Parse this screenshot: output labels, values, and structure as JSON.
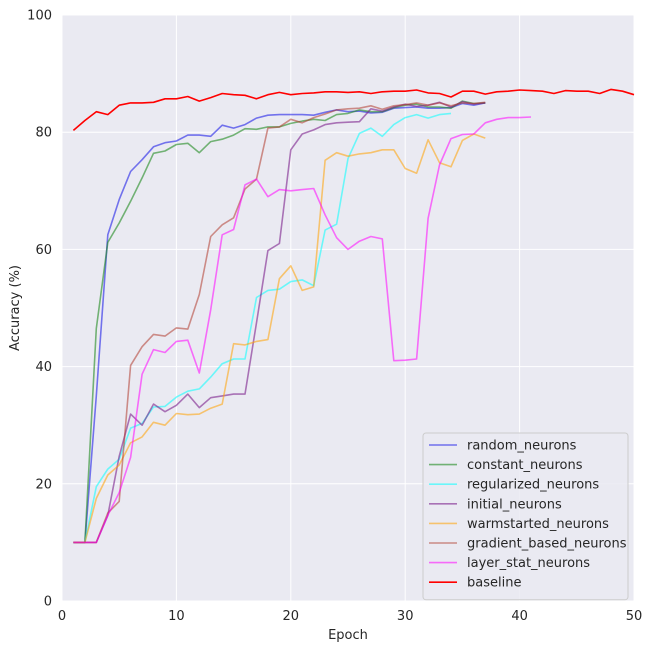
{
  "chart_data": {
    "type": "line",
    "title": "",
    "xlabel": "Epoch",
    "ylabel": "Accuracy (%)",
    "xlim": [
      0,
      50
    ],
    "ylim": [
      0,
      100
    ],
    "xticks": [
      0,
      10,
      20,
      30,
      40,
      50
    ],
    "yticks": [
      0,
      20,
      40,
      60,
      80,
      100
    ],
    "grid": true,
    "legend_position": "bottom-right",
    "background": "#eaeaf2",
    "series": [
      {
        "name": "random_neurons",
        "color": "#2020e8",
        "opacity": 0.6,
        "x": [
          1,
          2,
          3,
          4,
          5,
          6,
          7,
          8,
          9,
          10,
          11,
          12,
          13,
          14,
          15,
          16,
          17,
          18,
          19,
          20,
          21,
          22,
          23,
          24,
          25,
          26,
          27,
          28,
          29,
          30,
          31,
          32,
          33,
          34,
          35,
          36,
          37
        ],
        "y": [
          10,
          10,
          35,
          62.5,
          68.5,
          73.3,
          75.3,
          77.5,
          78.2,
          78.5,
          79.5,
          79.5,
          79.3,
          81.2,
          80.7,
          81.3,
          82.4,
          82.9,
          83.0,
          83.0,
          83.0,
          82.9,
          83.4,
          83.8,
          83.5,
          83.6,
          83.3,
          83.4,
          84.1,
          84.2,
          84.3,
          84.1,
          84.1,
          84.2,
          84.9,
          84.6,
          85.0
        ]
      },
      {
        "name": "constant_neurons",
        "color": "#208b20",
        "opacity": 0.6,
        "x": [
          1,
          2,
          3,
          4,
          5,
          6,
          7,
          8,
          9,
          10,
          11,
          12,
          13,
          14,
          15,
          16,
          17,
          18,
          19,
          20,
          21,
          22,
          23,
          24,
          25,
          26,
          27,
          28,
          29,
          30,
          31,
          32,
          33,
          34,
          35,
          36,
          37
        ],
        "y": [
          10,
          10,
          46.5,
          61.2,
          64.5,
          68.2,
          72.2,
          76.4,
          76.8,
          77.9,
          78.1,
          76.5,
          78.4,
          78.8,
          79.5,
          80.6,
          80.5,
          80.9,
          80.9,
          81.5,
          81.9,
          82.2,
          82.0,
          83.0,
          83.2,
          83.8,
          83.5,
          83.5,
          84.2,
          84.6,
          84.8,
          84.3,
          84.3,
          84.1,
          85.3,
          84.9,
          85.0
        ]
      },
      {
        "name": "regularized_neurons",
        "color": "#00ffff",
        "opacity": 0.55,
        "x": [
          1,
          2,
          3,
          4,
          5,
          6,
          7,
          8,
          9,
          10,
          11,
          12,
          13,
          14,
          15,
          16,
          17,
          18,
          19,
          20,
          21,
          22,
          23,
          24,
          25,
          26,
          27,
          28,
          29,
          30,
          31,
          32,
          33,
          34
        ],
        "y": [
          10,
          10,
          19.5,
          22.5,
          24.2,
          29.5,
          30.3,
          33.1,
          33.2,
          34.8,
          35.8,
          36.2,
          38.2,
          40.5,
          41.3,
          41.3,
          51.8,
          53.0,
          53.2,
          54.5,
          54.8,
          53.8,
          63.3,
          64.3,
          75.5,
          79.8,
          80.7,
          79.3,
          81.3,
          82.5,
          83.0,
          82.4,
          83.0,
          83.2
        ]
      },
      {
        "name": "initial_neurons",
        "color": "#7b1f8c",
        "opacity": 0.6,
        "x": [
          1,
          2,
          3,
          4,
          5,
          6,
          7,
          8,
          9,
          10,
          11,
          12,
          13,
          14,
          15,
          16,
          17,
          18,
          19,
          20,
          21,
          22,
          23,
          24,
          25,
          26,
          27,
          28,
          29,
          30,
          31,
          32,
          33,
          34,
          35,
          36,
          37
        ],
        "y": [
          10,
          10,
          10,
          14.6,
          24.7,
          31.9,
          30.0,
          33.6,
          32.3,
          33.4,
          35.3,
          33.0,
          34.7,
          35.0,
          35.3,
          35.3,
          47.5,
          59.8,
          61.0,
          77.0,
          79.7,
          80.4,
          81.3,
          81.6,
          81.7,
          81.8,
          84.0,
          83.6,
          84.3,
          84.8,
          84.4,
          84.6,
          85.1,
          84.3,
          85.2,
          84.8,
          85.0
        ]
      },
      {
        "name": "warmstarted_neurons",
        "color": "#ffa000",
        "opacity": 0.55,
        "x": [
          1,
          2,
          3,
          4,
          5,
          6,
          7,
          8,
          9,
          10,
          11,
          12,
          13,
          14,
          15,
          16,
          17,
          18,
          19,
          20,
          21,
          22,
          23,
          24,
          25,
          26,
          27,
          28,
          29,
          30,
          31,
          32,
          33,
          34,
          35,
          36,
          37
        ],
        "y": [
          10,
          10,
          17.5,
          21.5,
          23.2,
          27.0,
          28.0,
          30.5,
          30.0,
          32.0,
          31.8,
          31.9,
          32.9,
          33.6,
          43.9,
          43.7,
          44.3,
          44.6,
          55.0,
          57.2,
          53.0,
          53.6,
          75.2,
          76.5,
          75.9,
          76.3,
          76.5,
          77.0,
          77.0,
          73.8,
          73.0,
          78.7,
          74.8,
          74.1,
          78.6,
          79.7,
          79.0
        ]
      },
      {
        "name": "gradient_based_neurons",
        "color": "#b03a2e",
        "opacity": 0.55,
        "x": [
          1,
          2,
          3,
          4,
          5,
          6,
          7,
          8,
          9,
          10,
          11,
          12,
          13,
          14,
          15,
          16,
          17,
          18,
          19,
          20,
          21,
          22,
          23,
          24,
          25,
          26,
          27,
          28,
          29,
          30,
          31,
          32,
          33,
          34,
          35,
          36,
          37
        ],
        "y": [
          10,
          10,
          10,
          15.0,
          17.0,
          40.2,
          43.4,
          45.5,
          45.2,
          46.6,
          46.4,
          52.3,
          62.2,
          64.2,
          65.4,
          70.3,
          72.0,
          80.7,
          80.9,
          82.2,
          81.6,
          82.5,
          83.1,
          83.8,
          84.0,
          84.1,
          84.5,
          83.9,
          84.5,
          84.7,
          85.0,
          84.6,
          85.0,
          84.5,
          85.0,
          84.9,
          85.1
        ]
      },
      {
        "name": "layer_stat_neurons",
        "color": "#ff00ff",
        "opacity": 0.55,
        "x": [
          1,
          2,
          3,
          4,
          5,
          6,
          7,
          8,
          9,
          10,
          11,
          12,
          13,
          14,
          15,
          16,
          17,
          18,
          19,
          20,
          21,
          22,
          23,
          24,
          25,
          26,
          27,
          28,
          29,
          30,
          31,
          32,
          33,
          34,
          35,
          36,
          37,
          38,
          39,
          40,
          41
        ],
        "y": [
          10,
          10,
          10,
          14.6,
          18.5,
          24.5,
          38.7,
          42.9,
          42.4,
          44.3,
          44.5,
          38.9,
          49.7,
          62.5,
          63.4,
          71.0,
          72.0,
          69.0,
          70.2,
          70.0,
          70.2,
          70.4,
          65.9,
          62.0,
          60.0,
          61.4,
          62.2,
          61.8,
          41.0,
          41.1,
          41.3,
          65.3,
          74.4,
          78.9,
          79.6,
          79.7,
          81.6,
          82.2,
          82.5,
          82.5,
          82.6
        ]
      },
      {
        "name": "baseline",
        "color": "#ff0000",
        "opacity": 1,
        "x": [
          1,
          2,
          3,
          4,
          5,
          6,
          7,
          8,
          9,
          10,
          11,
          12,
          13,
          14,
          15,
          16,
          17,
          18,
          19,
          20,
          21,
          22,
          23,
          24,
          25,
          26,
          27,
          28,
          29,
          30,
          31,
          32,
          33,
          34,
          35,
          36,
          37,
          38,
          39,
          40,
          41,
          42,
          43,
          44,
          45,
          46,
          47,
          48,
          49,
          50
        ],
        "y": [
          80.3,
          82.0,
          83.5,
          83.0,
          84.6,
          85.0,
          85.0,
          85.1,
          85.7,
          85.7,
          86.1,
          85.3,
          85.9,
          86.6,
          86.4,
          86.3,
          85.7,
          86.4,
          86.8,
          86.4,
          86.6,
          86.7,
          86.9,
          86.9,
          86.8,
          86.9,
          86.6,
          86.9,
          87.0,
          87.0,
          87.2,
          86.7,
          86.6,
          86.0,
          87.0,
          87.0,
          86.5,
          86.9,
          87.0,
          87.2,
          87.1,
          87.0,
          86.6,
          87.1,
          87.0,
          87.0,
          86.6,
          87.3,
          87.0,
          86.4
        ]
      }
    ]
  }
}
